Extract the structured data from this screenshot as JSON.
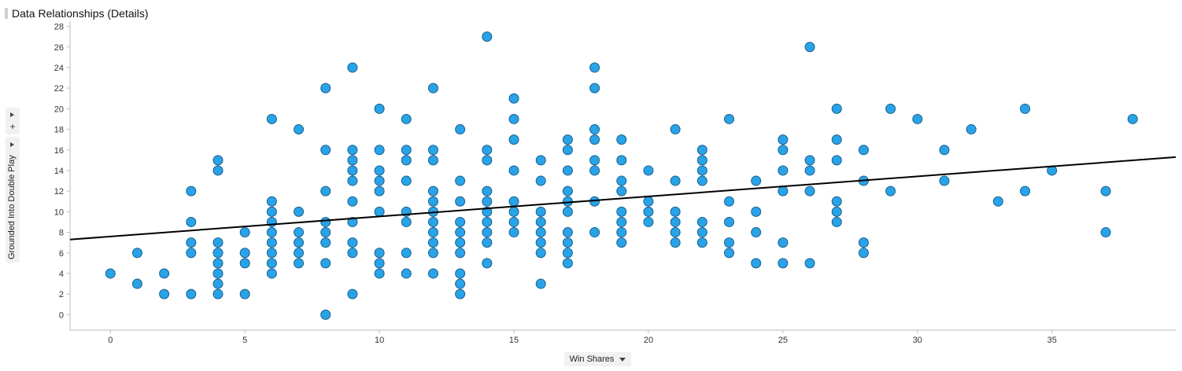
{
  "header": {
    "title": "Data Relationships (Details)"
  },
  "controls": {
    "plus_label": "+"
  },
  "icons": {
    "collapse": "triangle-right-icon",
    "add": "plus-icon",
    "dropdown": "chevron-down-icon"
  },
  "chart_data": {
    "type": "scatter",
    "title": "",
    "xlabel": "Win Shares",
    "ylabel": "Grounded Into Double Play",
    "xlim": [
      -1.5,
      39.6
    ],
    "ylim": [
      -1.5,
      28.5
    ],
    "x_ticks": [
      0,
      5,
      10,
      15,
      20,
      25,
      30,
      35
    ],
    "y_ticks": [
      0,
      2,
      4,
      6,
      8,
      10,
      12,
      14,
      16,
      18,
      20,
      22,
      24,
      26,
      28
    ],
    "grid": false,
    "legend": "none",
    "colors": {
      "point_fill": "#29a3e8",
      "point_stroke": "#1b5f8c",
      "trend": "#000000",
      "axis": "#bdbdbd"
    },
    "trendline": {
      "x": [
        -1.5,
        39.6
      ],
      "y": [
        7.3,
        15.3
      ]
    },
    "points": [
      [
        0,
        4
      ],
      [
        1,
        6
      ],
      [
        1,
        3
      ],
      [
        2,
        4
      ],
      [
        2,
        2
      ],
      [
        3,
        12
      ],
      [
        3,
        9
      ],
      [
        3,
        7
      ],
      [
        3,
        6
      ],
      [
        3,
        2
      ],
      [
        4,
        15
      ],
      [
        4,
        14
      ],
      [
        4,
        7
      ],
      [
        4,
        6
      ],
      [
        4,
        5
      ],
      [
        4,
        4
      ],
      [
        4,
        3
      ],
      [
        4,
        2
      ],
      [
        5,
        8
      ],
      [
        5,
        6
      ],
      [
        5,
        5
      ],
      [
        5,
        2
      ],
      [
        6,
        19
      ],
      [
        6,
        11
      ],
      [
        6,
        10
      ],
      [
        6,
        9
      ],
      [
        6,
        8
      ],
      [
        6,
        7
      ],
      [
        6,
        6
      ],
      [
        6,
        5
      ],
      [
        6,
        4
      ],
      [
        7,
        18
      ],
      [
        7,
        10
      ],
      [
        7,
        8
      ],
      [
        7,
        7
      ],
      [
        7,
        6
      ],
      [
        7,
        5
      ],
      [
        8,
        22
      ],
      [
        8,
        16
      ],
      [
        8,
        12
      ],
      [
        8,
        9
      ],
      [
        8,
        8
      ],
      [
        8,
        7
      ],
      [
        8,
        5
      ],
      [
        8,
        0
      ],
      [
        9,
        24
      ],
      [
        9,
        16
      ],
      [
        9,
        15
      ],
      [
        9,
        14
      ],
      [
        9,
        13
      ],
      [
        9,
        11
      ],
      [
        9,
        9
      ],
      [
        9,
        7
      ],
      [
        9,
        6
      ],
      [
        9,
        2
      ],
      [
        10,
        20
      ],
      [
        10,
        16
      ],
      [
        10,
        14
      ],
      [
        10,
        13
      ],
      [
        10,
        12
      ],
      [
        10,
        10
      ],
      [
        10,
        6
      ],
      [
        10,
        5
      ],
      [
        10,
        4
      ],
      [
        11,
        19
      ],
      [
        11,
        16
      ],
      [
        11,
        15
      ],
      [
        11,
        13
      ],
      [
        11,
        10
      ],
      [
        11,
        9
      ],
      [
        11,
        6
      ],
      [
        11,
        4
      ],
      [
        12,
        22
      ],
      [
        12,
        16
      ],
      [
        12,
        15
      ],
      [
        12,
        12
      ],
      [
        12,
        11
      ],
      [
        12,
        10
      ],
      [
        12,
        9
      ],
      [
        12,
        8
      ],
      [
        12,
        7
      ],
      [
        12,
        6
      ],
      [
        12,
        4
      ],
      [
        13,
        18
      ],
      [
        13,
        13
      ],
      [
        13,
        11
      ],
      [
        13,
        9
      ],
      [
        13,
        8
      ],
      [
        13,
        7
      ],
      [
        13,
        6
      ],
      [
        13,
        4
      ],
      [
        13,
        3
      ],
      [
        13,
        2
      ],
      [
        14,
        27
      ],
      [
        14,
        16
      ],
      [
        14,
        15
      ],
      [
        14,
        12
      ],
      [
        14,
        11
      ],
      [
        14,
        10
      ],
      [
        14,
        9
      ],
      [
        14,
        8
      ],
      [
        14,
        7
      ],
      [
        14,
        5
      ],
      [
        15,
        21
      ],
      [
        15,
        19
      ],
      [
        15,
        17
      ],
      [
        15,
        14
      ],
      [
        15,
        11
      ],
      [
        15,
        10
      ],
      [
        15,
        9
      ],
      [
        15,
        8
      ],
      [
        16,
        15
      ],
      [
        16,
        13
      ],
      [
        16,
        10
      ],
      [
        16,
        9
      ],
      [
        16,
        8
      ],
      [
        16,
        7
      ],
      [
        16,
        6
      ],
      [
        16,
        3
      ],
      [
        17,
        17
      ],
      [
        17,
        16
      ],
      [
        17,
        14
      ],
      [
        17,
        12
      ],
      [
        17,
        11
      ],
      [
        17,
        10
      ],
      [
        17,
        8
      ],
      [
        17,
        7
      ],
      [
        17,
        6
      ],
      [
        17,
        5
      ],
      [
        18,
        24
      ],
      [
        18,
        22
      ],
      [
        18,
        18
      ],
      [
        18,
        17
      ],
      [
        18,
        15
      ],
      [
        18,
        14
      ],
      [
        18,
        11
      ],
      [
        18,
        8
      ],
      [
        19,
        17
      ],
      [
        19,
        15
      ],
      [
        19,
        13
      ],
      [
        19,
        12
      ],
      [
        19,
        10
      ],
      [
        19,
        9
      ],
      [
        19,
        8
      ],
      [
        19,
        7
      ],
      [
        20,
        14
      ],
      [
        20,
        11
      ],
      [
        20,
        10
      ],
      [
        20,
        9
      ],
      [
        21,
        18
      ],
      [
        21,
        13
      ],
      [
        21,
        10
      ],
      [
        21,
        9
      ],
      [
        21,
        8
      ],
      [
        21,
        7
      ],
      [
        22,
        16
      ],
      [
        22,
        15
      ],
      [
        22,
        14
      ],
      [
        22,
        13
      ],
      [
        22,
        9
      ],
      [
        22,
        8
      ],
      [
        22,
        7
      ],
      [
        23,
        19
      ],
      [
        23,
        11
      ],
      [
        23,
        9
      ],
      [
        23,
        7
      ],
      [
        23,
        6
      ],
      [
        24,
        13
      ],
      [
        24,
        10
      ],
      [
        24,
        8
      ],
      [
        24,
        5
      ],
      [
        25,
        17
      ],
      [
        25,
        16
      ],
      [
        25,
        14
      ],
      [
        25,
        12
      ],
      [
        25,
        7
      ],
      [
        25,
        5
      ],
      [
        26,
        26
      ],
      [
        26,
        15
      ],
      [
        26,
        14
      ],
      [
        26,
        12
      ],
      [
        26,
        5
      ],
      [
        27,
        20
      ],
      [
        27,
        17
      ],
      [
        27,
        15
      ],
      [
        27,
        11
      ],
      [
        27,
        10
      ],
      [
        27,
        9
      ],
      [
        28,
        16
      ],
      [
        28,
        13
      ],
      [
        28,
        7
      ],
      [
        28,
        6
      ],
      [
        29,
        20
      ],
      [
        29,
        12
      ],
      [
        30,
        19
      ],
      [
        31,
        16
      ],
      [
        31,
        13
      ],
      [
        32,
        18
      ],
      [
        33,
        11
      ],
      [
        34,
        20
      ],
      [
        34,
        12
      ],
      [
        35,
        14
      ],
      [
        37,
        12
      ],
      [
        37,
        8
      ],
      [
        38,
        19
      ]
    ]
  }
}
